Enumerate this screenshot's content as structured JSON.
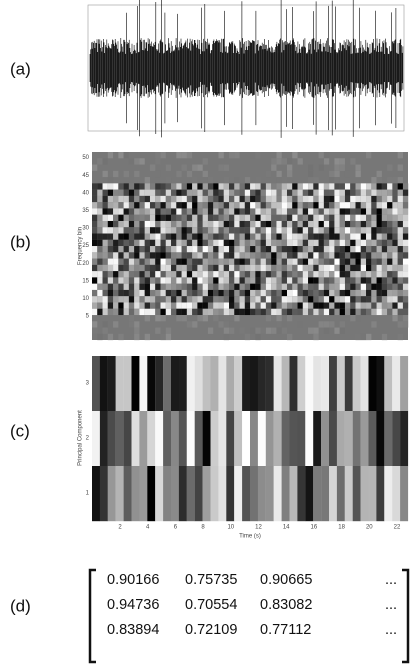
{
  "panels": [
    {
      "label": "(a)"
    },
    {
      "label": "(b)",
      "y_axis_label": "Frequency bin",
      "yticks": [
        "5",
        "10",
        "15",
        "20",
        "25",
        "30",
        "35",
        "40",
        "45",
        "50"
      ]
    },
    {
      "label": "(c)",
      "y_axis_label": "Principal Component",
      "yticks": [
        "1",
        "2",
        "3"
      ],
      "x_axis_label": "Time (s)",
      "xticks": [
        "2",
        "4",
        "6",
        "8",
        "10",
        "12",
        "14",
        "16",
        "18",
        "20",
        "22"
      ]
    },
    {
      "label": "(d)",
      "matrix": [
        [
          "0.90166",
          "0.75735",
          "0.90665",
          "..."
        ],
        [
          "0.94736",
          "0.70554",
          "0.83082",
          "..."
        ],
        [
          "0.83894",
          "0.72109",
          "0.77112",
          "..."
        ]
      ]
    }
  ]
}
